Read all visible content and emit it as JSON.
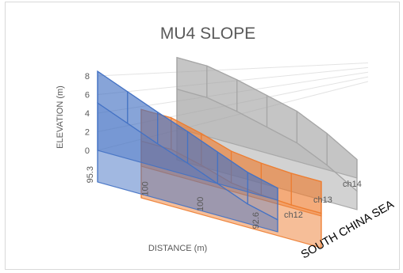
{
  "chart_data": {
    "type": "3d-area",
    "title": "MU4 SLOPE",
    "xlabel": "DISTANCE (m)",
    "ylabel": "ELEVATION (m)",
    "zlabel": "",
    "y_ticks": [
      "0",
      "2",
      "4",
      "6",
      "8"
    ],
    "ylim": [
      0,
      8
    ],
    "x_ticks": [
      "95.3",
      "100",
      "100",
      "92.6"
    ],
    "series_ticks": [
      "ch12",
      "ch13",
      "ch14"
    ],
    "grid": true,
    "series": [
      {
        "name": "ch12",
        "color": "#4472c4",
        "values": [
          8.5,
          7.2,
          5.9,
          4.7,
          3.4,
          2.1,
          1.3
        ]
      },
      {
        "name": "ch13",
        "color": "#ed7d31",
        "values": [
          6.1,
          6.1,
          5.3,
          4.3,
          3.9,
          3.7,
          3.7
        ]
      },
      {
        "name": "ch14",
        "color": "#a5a5a5",
        "values": [
          7.6,
          7.6,
          7.0,
          6.2,
          5.4,
          3.9,
          2.0
        ]
      }
    ]
  },
  "annotation": {
    "text": "SOUTH CHINA SEA"
  }
}
